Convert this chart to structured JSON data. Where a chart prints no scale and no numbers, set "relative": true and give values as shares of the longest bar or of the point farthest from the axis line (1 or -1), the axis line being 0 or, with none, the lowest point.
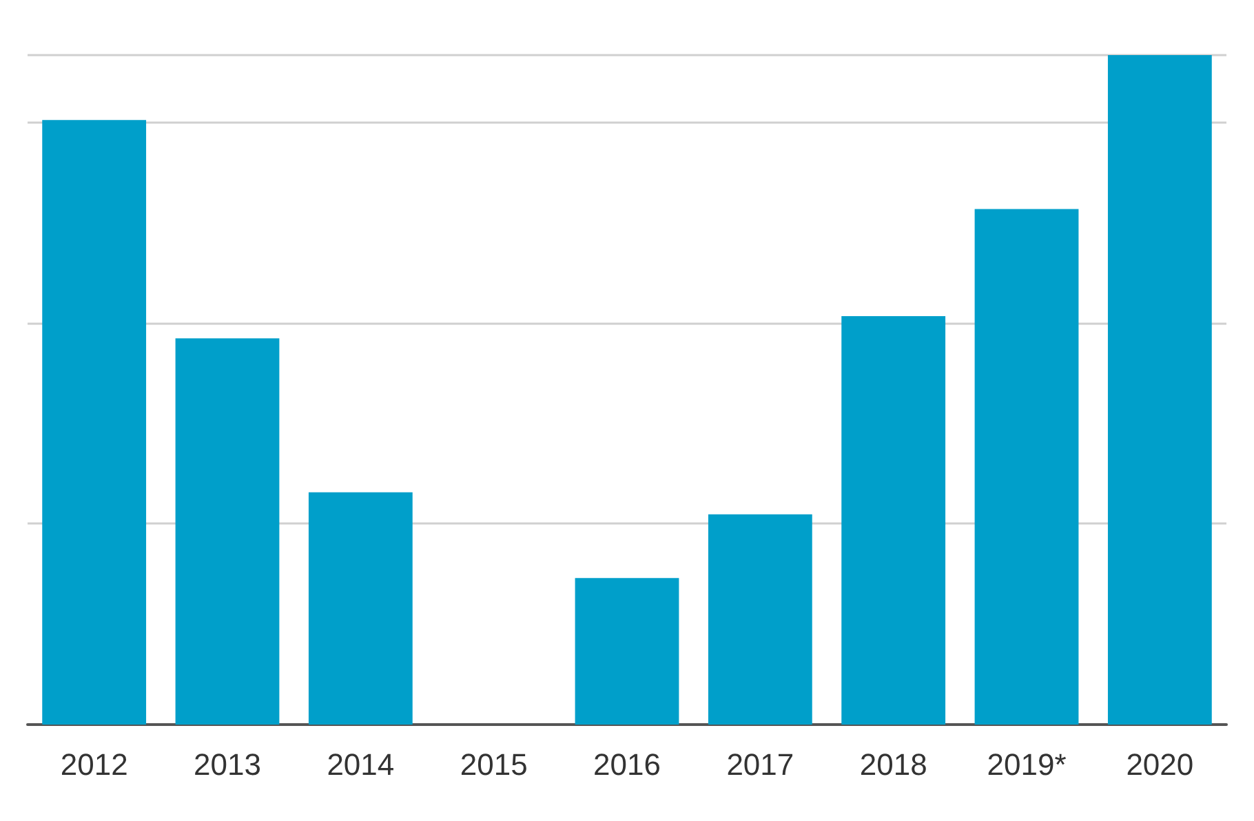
{
  "chart_data": {
    "type": "bar",
    "relative": true,
    "grid": true,
    "categories": [
      "2012",
      "2013",
      "2014",
      "2015",
      "2016",
      "2017",
      "2018",
      "2019*",
      "2020"
    ],
    "values": [
      0.903,
      0.577,
      0.347,
      0,
      0.219,
      0.314,
      0.61,
      0.77,
      1
    ],
    "color": "#009fca"
  }
}
